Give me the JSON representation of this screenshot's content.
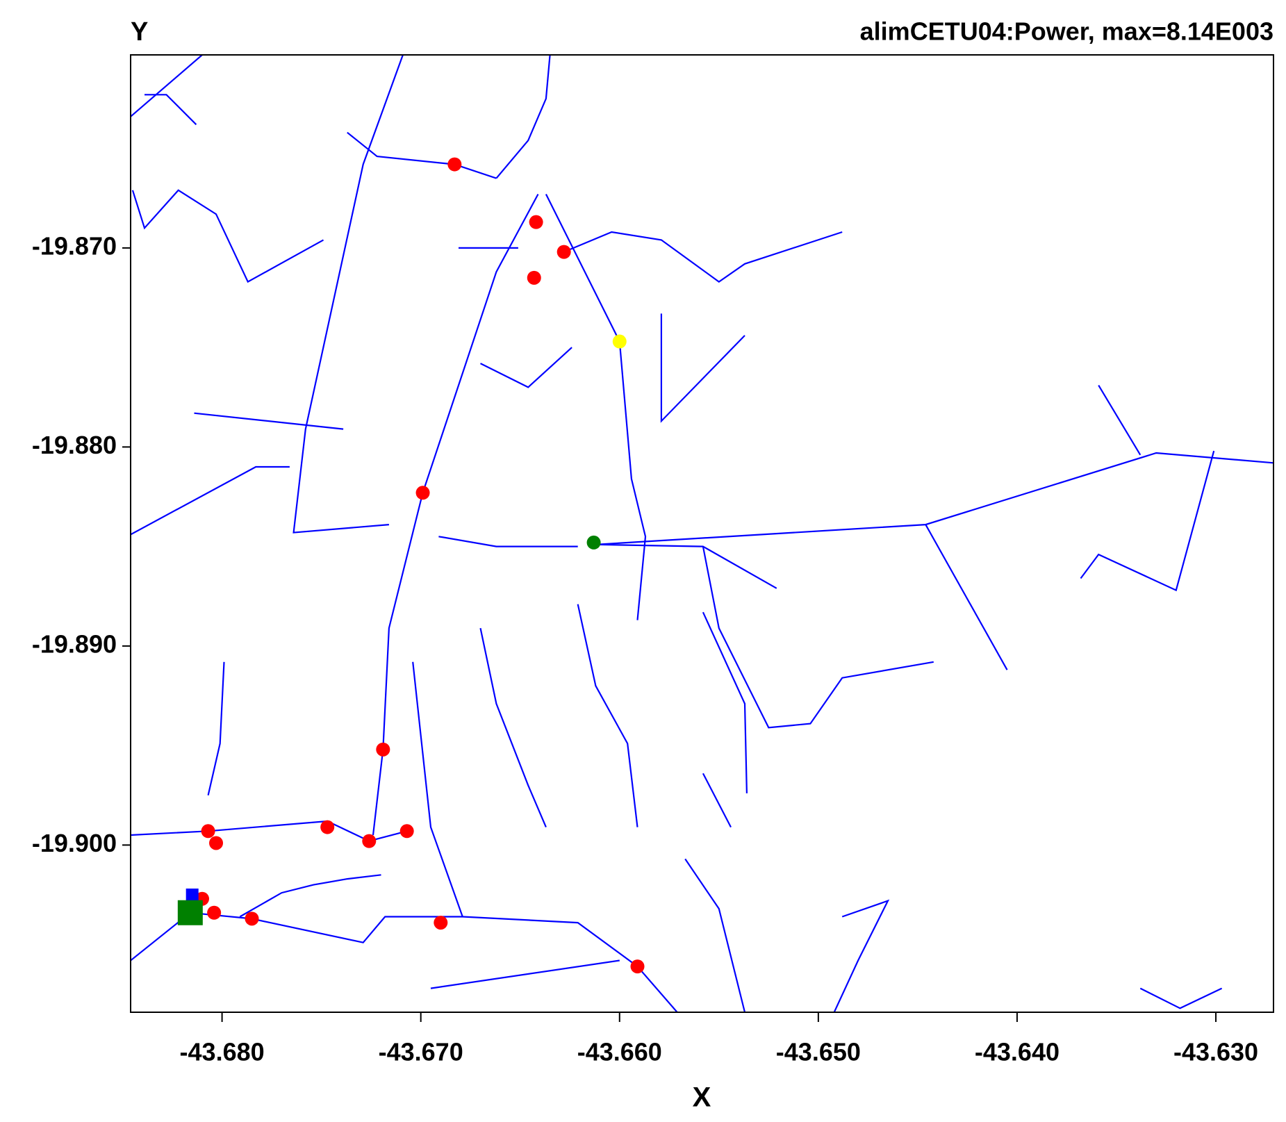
{
  "chart_data": {
    "type": "scatter",
    "title": "alimCETU04:Power, max=8.14E003",
    "x_label": "X",
    "y_label": "Y",
    "xlim": [
      -43.6846,
      -43.6271
    ],
    "ylim": [
      -19.9084,
      -19.8603
    ],
    "xticks": [
      {
        "value": -43.68,
        "label": "-43.680"
      },
      {
        "value": -43.67,
        "label": "-43.670"
      },
      {
        "value": -43.66,
        "label": "-43.660"
      },
      {
        "value": -43.65,
        "label": "-43.650"
      },
      {
        "value": -43.64,
        "label": "-43.640"
      },
      {
        "value": -43.63,
        "label": "-43.630"
      }
    ],
    "yticks": [
      {
        "value": -19.87,
        "label": "-19.870"
      },
      {
        "value": -19.88,
        "label": "-19.880"
      },
      {
        "value": -19.89,
        "label": "-19.890"
      },
      {
        "value": -19.9,
        "label": "-19.900"
      }
    ],
    "line_color": "#0000ff",
    "lines": [
      {
        "x": [
          -43.6709,
          -43.6729,
          -43.6758,
          -43.6764,
          -43.6716
        ],
        "y": [
          -19.8603,
          -19.8658,
          -19.8791,
          -19.8843,
          -19.8839
        ]
      },
      {
        "x": [
          -43.6641,
          -43.6662,
          -43.6699,
          -43.6716,
          -43.6719,
          -43.6724
        ],
        "y": [
          -19.8673,
          -19.8712,
          -19.8823,
          -19.8891,
          -19.8952,
          -19.8995
        ]
      },
      {
        "x": [
          -43.6637,
          -43.66,
          -43.6594,
          -43.6587,
          -43.6591
        ],
        "y": [
          -19.8673,
          -19.8747,
          -19.8816,
          -19.8845,
          -19.8887
        ]
      },
      {
        "x": [
          -43.6737,
          -43.6722,
          -43.6683,
          -43.6662
        ],
        "y": [
          -19.8642,
          -19.8654,
          -19.8658,
          -19.8665
        ]
      },
      {
        "x": [
          -43.6662,
          -43.6646,
          -43.6637,
          -43.6635
        ],
        "y": [
          -19.8665,
          -19.8646,
          -19.8625,
          -19.8603
        ]
      },
      {
        "x": [
          -43.6612,
          -43.6446,
          -43.633,
          -43.6271
        ],
        "y": [
          -19.8849,
          -19.8839,
          -19.8803,
          -19.8808
        ]
      },
      {
        "x": [
          -43.6446,
          -43.6405
        ],
        "y": [
          -19.8839,
          -19.8912
        ]
      },
      {
        "x": [
          -43.6301,
          -43.632,
          -43.6359,
          -43.6368
        ],
        "y": [
          -19.8802,
          -19.8872,
          -19.8854,
          -19.8866
        ]
      },
      {
        "x": [
          -43.6359,
          -43.6338
        ],
        "y": [
          -19.8769,
          -19.8804
        ]
      },
      {
        "x": [
          -43.6628,
          -43.6604,
          -43.6579,
          -43.655,
          -43.6537,
          -43.6488
        ],
        "y": [
          -19.8702,
          -19.8692,
          -19.8696,
          -19.8717,
          -19.8708,
          -19.8692
        ]
      },
      {
        "x": [
          -43.6839,
          -43.6828,
          -43.6813
        ],
        "y": [
          -19.8623,
          -19.8623,
          -19.8638
        ]
      },
      {
        "x": [
          -43.6846,
          -43.681
        ],
        "y": [
          -19.8634,
          -19.8603
        ]
      },
      {
        "x": [
          -43.6845,
          -43.6839,
          -43.6822,
          -43.6803,
          -43.6787,
          -43.6749
        ],
        "y": [
          -19.8671,
          -19.869,
          -19.8671,
          -19.8683,
          -19.8717,
          -19.8696
        ]
      },
      {
        "x": [
          -43.6846,
          -43.6783,
          -43.6766
        ],
        "y": [
          -19.8844,
          -19.881,
          -19.881
        ]
      },
      {
        "x": [
          -43.6814,
          -43.6739
        ],
        "y": [
          -19.8783,
          -19.8791
        ]
      },
      {
        "x": [
          -43.6846,
          -43.6807,
          -43.6747,
          -43.6726,
          -43.6707
        ],
        "y": [
          -19.8995,
          -19.8993,
          -19.8988,
          -19.8998,
          -19.8993
        ]
      },
      {
        "x": [
          -43.6816,
          -43.6785,
          -43.6729,
          -43.6718,
          -43.6679,
          -43.6621,
          -43.6591,
          -43.6571
        ],
        "y": [
          -19.9034,
          -19.9037,
          -19.9049,
          -19.9036,
          -19.9036,
          -19.9039,
          -19.9061,
          -19.9084
        ]
      },
      {
        "x": [
          -43.6791,
          -43.677,
          -43.6754,
          -43.6737,
          -43.672
        ],
        "y": [
          -19.9036,
          -19.9024,
          -19.902,
          -19.9017,
          -19.9015
        ]
      },
      {
        "x": [
          -43.6695,
          -43.66
        ],
        "y": [
          -19.9072,
          -19.9058
        ]
      },
      {
        "x": [
          -43.6846,
          -43.6816
        ],
        "y": [
          -19.9058,
          -19.9034
        ]
      },
      {
        "x": [
          -43.6612,
          -43.6558,
          -43.6521
        ],
        "y": [
          -19.8849,
          -19.885,
          -19.8871
        ]
      },
      {
        "x": [
          -43.6558,
          -43.655,
          -43.6525,
          -43.6504,
          -43.6488,
          -43.6442
        ],
        "y": [
          -19.885,
          -19.8891,
          -19.8941,
          -19.8939,
          -19.8916,
          -19.8908
        ]
      },
      {
        "x": [
          -43.6558,
          -43.6537,
          -43.6536
        ],
        "y": [
          -19.8883,
          -19.8929,
          -19.8974
        ]
      },
      {
        "x": [
          -43.6799,
          -43.6801,
          -43.6807
        ],
        "y": [
          -19.8908,
          -19.8949,
          -19.8975
        ]
      },
      {
        "x": [
          -43.6691,
          -43.6662,
          -43.6621
        ],
        "y": [
          -19.8845,
          -19.885,
          -19.885
        ]
      },
      {
        "x": [
          -43.6704,
          -43.6695,
          -43.6679
        ],
        "y": [
          -19.8908,
          -19.8991,
          -19.9036
        ]
      },
      {
        "x": [
          -43.667,
          -43.6662,
          -43.6646,
          -43.6637
        ],
        "y": [
          -19.8891,
          -19.8929,
          -19.897,
          -19.8991
        ]
      },
      {
        "x": [
          -43.6621,
          -43.6612,
          -43.6596,
          -43.6591
        ],
        "y": [
          -19.8879,
          -19.892,
          -19.8949,
          -19.8991
        ]
      },
      {
        "x": [
          -43.6488,
          -43.6465,
          -43.648,
          -43.6492
        ],
        "y": [
          -19.9036,
          -19.9028,
          -19.9058,
          -19.9084
        ]
      },
      {
        "x": [
          -43.6567,
          -43.655,
          -43.6537
        ],
        "y": [
          -19.9007,
          -19.9032,
          -19.9084
        ]
      },
      {
        "x": [
          -43.6558,
          -43.6544
        ],
        "y": [
          -19.8964,
          -19.8991
        ]
      },
      {
        "x": [
          -43.6338,
          -43.6318,
          -43.6297
        ],
        "y": [
          -19.9072,
          -19.9082,
          -19.9072
        ]
      },
      {
        "x": [
          -43.6579,
          -43.6579,
          -43.6537
        ],
        "y": [
          -19.8733,
          -19.8787,
          -19.8744
        ]
      },
      {
        "x": [
          -43.667,
          -43.6646,
          -43.6624
        ],
        "y": [
          -19.8758,
          -19.877,
          -19.875
        ]
      },
      {
        "x": [
          -43.6681,
          -43.6651
        ],
        "y": [
          -19.87,
          -19.87
        ]
      }
    ],
    "series": [
      {
        "color": "#ff0000",
        "marker": "circle",
        "x": [
          -43.6683,
          -43.6642,
          -43.6628,
          -43.6643,
          -43.6699,
          -43.6719,
          -43.6807,
          -43.6803,
          -43.6747,
          -43.6726,
          -43.6707,
          -43.681,
          -43.6804,
          -43.6785,
          -43.669,
          -43.6591
        ],
        "y": [
          -19.8658,
          -19.8687,
          -19.8702,
          -19.8715,
          -19.8823,
          -19.8952,
          -19.8993,
          -19.8999,
          -19.8991,
          -19.8998,
          -19.8993,
          -19.9027,
          -19.9034,
          -19.9037,
          -19.9039,
          -19.9061
        ]
      },
      {
        "color": "#ffff00",
        "marker": "circle",
        "x": [
          -43.66
        ],
        "y": [
          -19.8747
        ]
      },
      {
        "color": "#008000",
        "marker": "circle",
        "x": [
          -43.6613
        ],
        "y": [
          -19.8848
        ]
      },
      {
        "color": "#0000ff",
        "marker": "square",
        "x": [
          -43.6815
        ],
        "y": [
          -19.9025
        ]
      },
      {
        "color": "#008000",
        "marker": "big-square",
        "x": [
          -43.6816
        ],
        "y": [
          -19.9034
        ]
      }
    ]
  }
}
